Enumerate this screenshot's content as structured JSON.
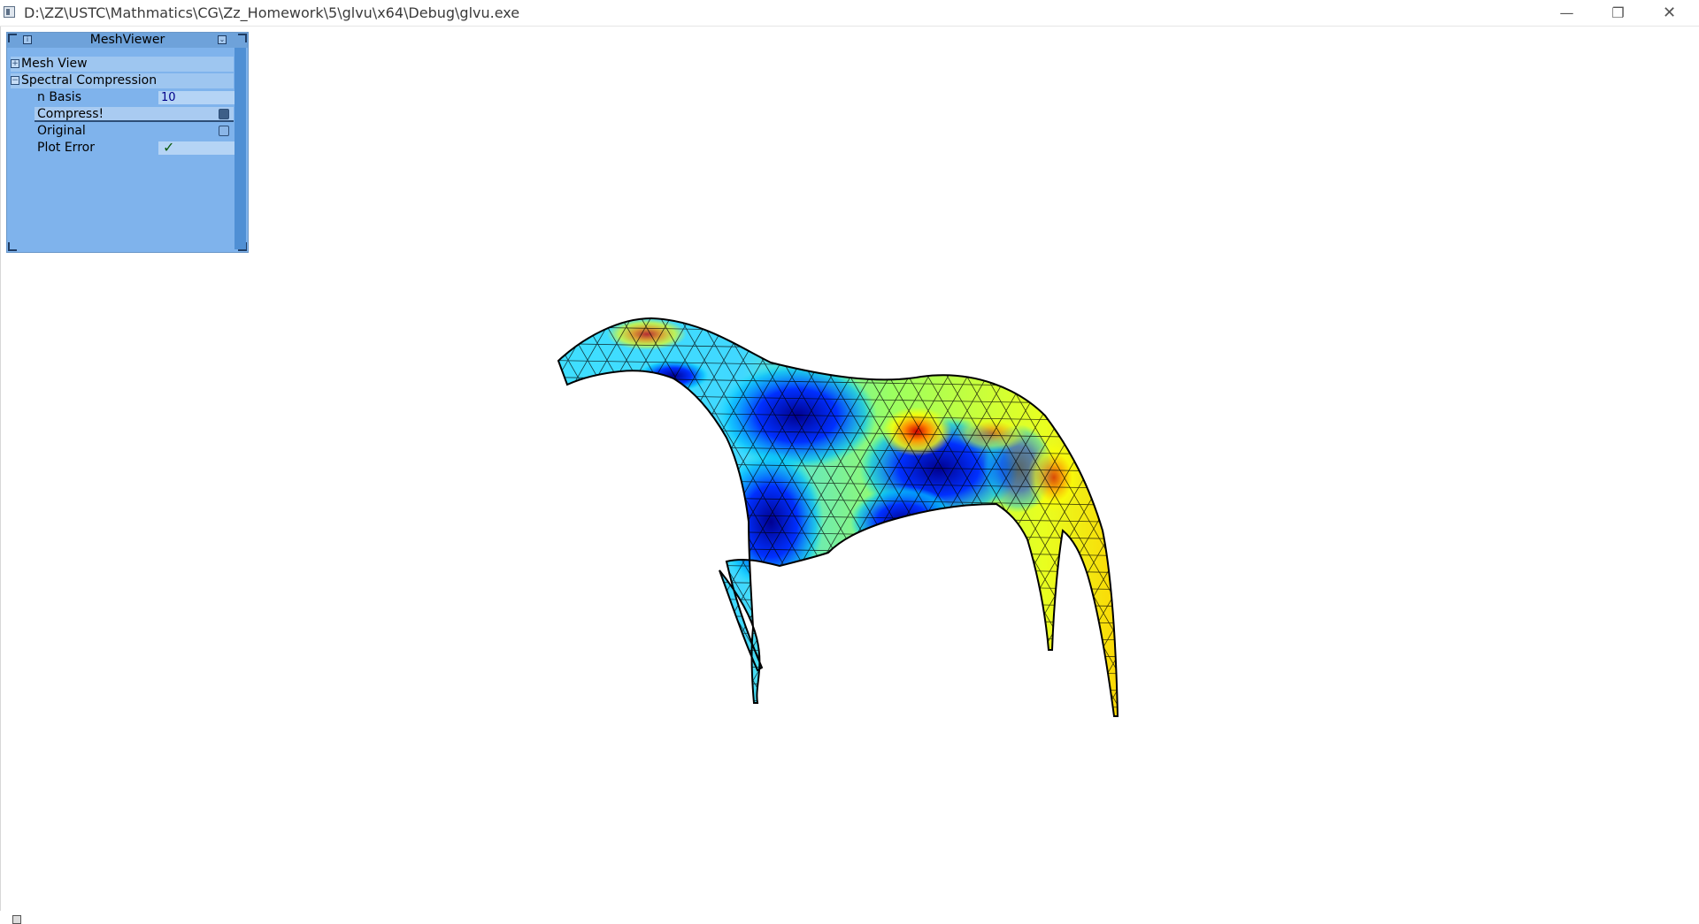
{
  "window": {
    "title": "D:\\ZZ\\USTC\\Mathmatics\\CG\\Zz_Homework\\5\\glvu\\x64\\Debug\\glvu.exe",
    "minimize_glyph": "—",
    "restore_glyph": "❐",
    "close_glyph": "✕"
  },
  "tweakbar": {
    "title": "MeshViewer",
    "groups": [
      {
        "label": "Mesh View",
        "expander": "+"
      },
      {
        "label": "Spectral Compression",
        "expander": "−"
      }
    ],
    "params": {
      "n_basis_label": "n Basis",
      "n_basis_value": "10",
      "compress_label": "Compress!",
      "original_label": "Original",
      "plot_error_label": "Plot Error",
      "plot_error_checked": "✓"
    }
  },
  "mesh": {
    "colormap": [
      "#00008f",
      "#0020ff",
      "#00c8ff",
      "#7dff7a",
      "#ffff00",
      "#ff8c00",
      "#d00000"
    ],
    "wire_color": "#000000"
  }
}
